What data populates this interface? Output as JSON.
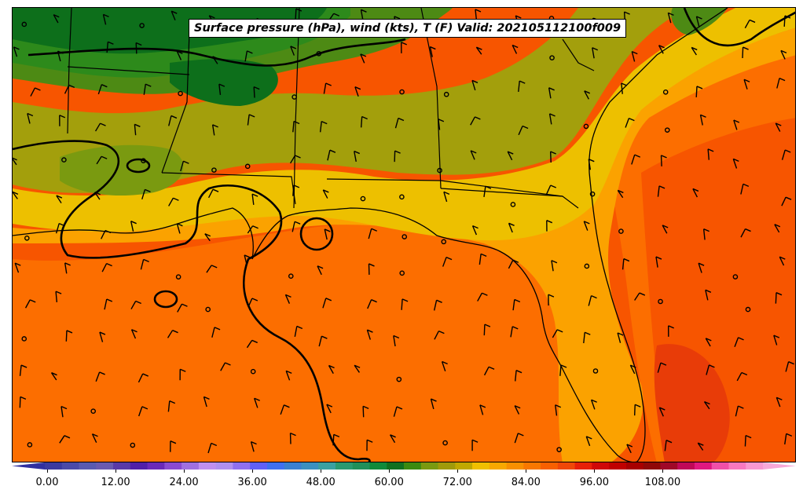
{
  "map": {
    "title": "Surface pressure (hPa), wind (kts), T (F) Valid: 202105112100f009"
  },
  "colorbar": {
    "tick_labels": [
      "0.00",
      "12.00",
      "24.00",
      "36.00",
      "48.00",
      "60.00",
      "72.00",
      "84.00",
      "96.00",
      "108.00"
    ],
    "colors": [
      "#3a3aa0",
      "#4a4aa8",
      "#5a5ab0",
      "#6a5ab0",
      "#5a3aa8",
      "#5020a8",
      "#6a2ab8",
      "#8a4ad0",
      "#a070e0",
      "#c090f0",
      "#b090f0",
      "#9070f0",
      "#6060f8",
      "#4070f0",
      "#3a80d0",
      "#3a90c0",
      "#3aa0a0",
      "#2a9a70",
      "#20905a",
      "#108a3a",
      "#107020",
      "#3a8a10",
      "#7a9a10",
      "#a09a0a",
      "#c0a800",
      "#f0c000",
      "#f8a800",
      "#f89000",
      "#f87800",
      "#f86000",
      "#f04808",
      "#e82008",
      "#d00808",
      "#c00000",
      "#a80000",
      "#900808",
      "#a00828",
      "#c00858",
      "#e01880",
      "#f050a8",
      "#f878c0",
      "#f898d0"
    ],
    "ticks_per_step": 4
  },
  "colors": {
    "dark_green": "#0d6f1b",
    "green": "#2d8a1b",
    "olive_green": "#4d8a14",
    "olive": "#a39f0c",
    "gold": "#edc000",
    "orange_light": "#fba200",
    "orange": "#fc6e00",
    "orange_red": "#f75500",
    "red_orange": "#e83c08",
    "ocean_dark": "#e04808"
  }
}
